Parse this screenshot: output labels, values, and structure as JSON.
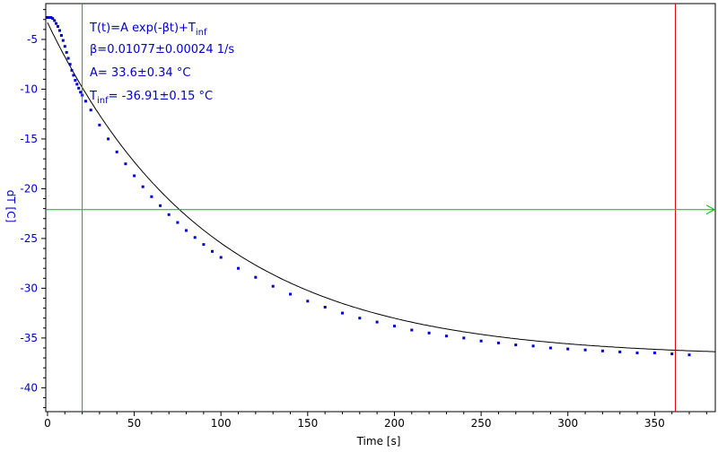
{
  "chart_data": {
    "type": "scatter",
    "xlabel": "Time [s]",
    "ylabel": "dT [C]",
    "xlim": [
      -1,
      385
    ],
    "ylim": [
      -42.4,
      -1.4
    ],
    "x_ticks": [
      0,
      50,
      100,
      150,
      200,
      250,
      300,
      350
    ],
    "y_ticks": [
      -5,
      -10,
      -15,
      -20,
      -25,
      -30,
      -35,
      -40
    ],
    "x_tick_labels": [
      "0",
      "50",
      "100",
      "150",
      "200",
      "250",
      "300",
      "350"
    ],
    "y_tick_labels": [
      "-5",
      "-10",
      "-15",
      "-20",
      "-25",
      "-30",
      "-35",
      "-40"
    ],
    "grid": false,
    "fit": {
      "model": "T(t)=A exp(-βt)+T_inf",
      "A": 33.6,
      "beta": 0.01077,
      "T_inf": -36.91
    },
    "series": [
      {
        "points": [
          [
            0,
            -2.8
          ],
          [
            1,
            -2.8
          ],
          [
            2,
            -2.8
          ],
          [
            3,
            -2.9
          ],
          [
            4,
            -3.1
          ],
          [
            5,
            -3.4
          ],
          [
            6,
            -3.7
          ],
          [
            7,
            -4.1
          ],
          [
            8,
            -4.6
          ],
          [
            9,
            -5.1
          ],
          [
            10,
            -5.7
          ],
          [
            11,
            -6.3
          ],
          [
            12,
            -6.9
          ],
          [
            13,
            -7.5
          ],
          [
            14,
            -8.1
          ],
          [
            15,
            -8.6
          ],
          [
            16,
            -9.1
          ],
          [
            17,
            -9.5
          ],
          [
            18,
            -9.9
          ],
          [
            19,
            -10.3
          ],
          [
            20,
            -10.6
          ],
          [
            22,
            -11.2
          ],
          [
            25,
            -12.1
          ],
          [
            30,
            -13.6
          ],
          [
            35,
            -15.0
          ],
          [
            40,
            -16.3
          ],
          [
            45,
            -17.5
          ],
          [
            50,
            -18.7
          ],
          [
            55,
            -19.8
          ],
          [
            60,
            -20.8
          ],
          [
            65,
            -21.7
          ],
          [
            70,
            -22.6
          ],
          [
            75,
            -23.4
          ],
          [
            80,
            -24.2
          ],
          [
            85,
            -24.9
          ],
          [
            90,
            -25.6
          ],
          [
            95,
            -26.3
          ],
          [
            100,
            -26.9
          ],
          [
            110,
            -28.0
          ],
          [
            120,
            -28.9
          ],
          [
            130,
            -29.8
          ],
          [
            140,
            -30.6
          ],
          [
            150,
            -31.3
          ],
          [
            160,
            -31.9
          ],
          [
            170,
            -32.5
          ],
          [
            180,
            -33.0
          ],
          [
            190,
            -33.4
          ],
          [
            200,
            -33.8
          ],
          [
            210,
            -34.2
          ],
          [
            220,
            -34.5
          ],
          [
            230,
            -34.8
          ],
          [
            240,
            -35.0
          ],
          [
            250,
            -35.3
          ],
          [
            260,
            -35.5
          ],
          [
            270,
            -35.7
          ],
          [
            280,
            -35.8
          ],
          [
            290,
            -36.0
          ],
          [
            300,
            -36.1
          ],
          [
            310,
            -36.2
          ],
          [
            320,
            -36.3
          ],
          [
            330,
            -36.4
          ],
          [
            340,
            -36.5
          ],
          [
            350,
            -36.5
          ],
          [
            360,
            -36.6
          ],
          [
            370,
            -36.7
          ]
        ]
      }
    ],
    "markers": {
      "vertical_green_x": 20,
      "vertical_red_x": 362,
      "horizontal_green_y": -22.1
    },
    "annotations": {
      "line1_main": "T(t)=A exp(-βt)+T",
      "line1_sub": "inf",
      "line2": "β=0.01077±0.00024 1/s",
      "line3": "A= 33.6±0.34 °C",
      "line4_main": "T",
      "line4_sub": "inf",
      "line4_rest": "= -36.91±0.15 °C"
    },
    "colors": {
      "data": "#0000cc",
      "fit": "#000000",
      "axis_text": "#0000cc",
      "green": "#00bb00",
      "red": "#dd0000",
      "frame": "#000000"
    }
  }
}
